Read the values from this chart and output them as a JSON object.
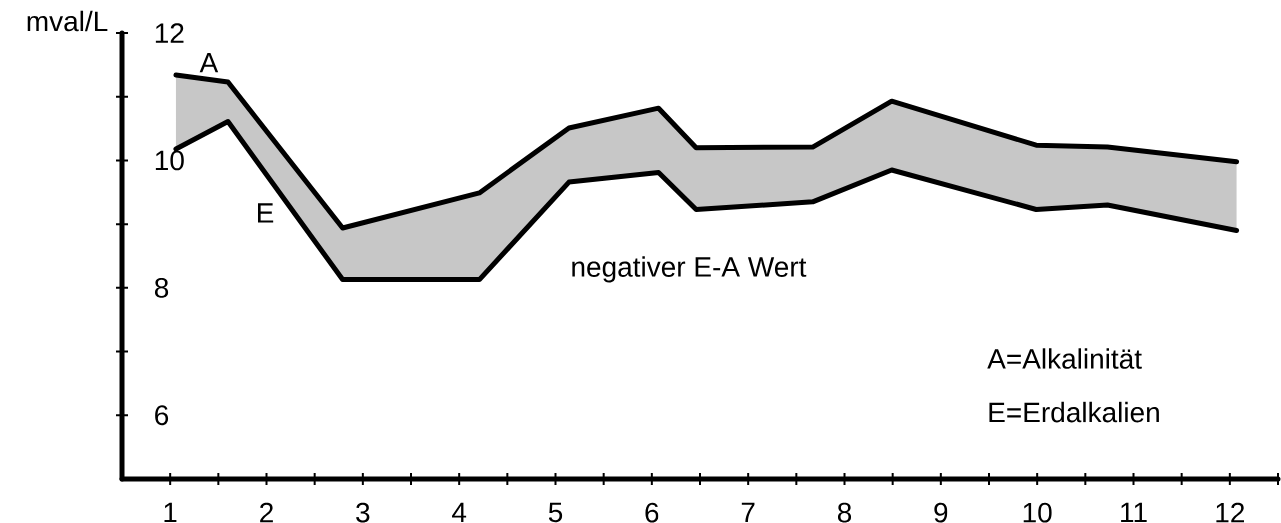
{
  "chart_data": {
    "type": "line",
    "ylabel": "mval/L",
    "annotations": [
      "negativer E-A Wert",
      "A=Alkalinität",
      "E=Erdalkalien"
    ],
    "x": [
      1.06,
      1.6,
      2.79,
      4.21,
      5.14,
      6.07,
      6.46,
      7.67,
      8.49,
      9.99,
      10.73,
      12.07
    ],
    "series": [
      {
        "name": "A",
        "color": "#000000",
        "values": [
          11.34,
          11.23,
          8.94,
          9.49,
          10.51,
          10.82,
          10.2,
          10.21,
          10.93,
          10.24,
          10.21,
          9.98
        ]
      },
      {
        "name": "E",
        "color": "#000000",
        "values": [
          10.18,
          10.61,
          8.13,
          8.13,
          9.66,
          9.81,
          9.23,
          9.35,
          9.85,
          9.23,
          9.3,
          8.9
        ],
        "lower": [
          10.18,
          10.61,
          8.13,
          8.13,
          9.66,
          9.81,
          9.23,
          9.35,
          9.85,
          9.23,
          9.3,
          8.9
        ],
        "upper": [
          11.34,
          11.23,
          8.94,
          9.49,
          10.51,
          10.82,
          10.2,
          10.21,
          10.93,
          10.24,
          10.21,
          9.98
        ]
      }
    ],
    "xlim": [
      0.5,
      12.5
    ],
    "ylim": [
      5,
      12
    ],
    "xticks": [
      1,
      {
        "value": 1.5,
        "label": null
      },
      2,
      {
        "value": 2.5,
        "label": null
      },
      3,
      {
        "value": 3.5,
        "label": null
      },
      4,
      {
        "value": 4.5,
        "label": null
      },
      5,
      {
        "value": 5.5,
        "label": null
      },
      6,
      {
        "value": 6.5,
        "label": null
      },
      7,
      {
        "value": 7.5,
        "label": null
      },
      8,
      {
        "value": 8.5,
        "label": null
      },
      9,
      {
        "value": 9.5,
        "label": null
      },
      10,
      {
        "value": 10.5,
        "label": null
      },
      11,
      {
        "value": 11.5,
        "label": null
      },
      12,
      {
        "value": 12.5,
        "label": null
      }
    ],
    "yticks": [
      6,
      {
        "value": 7,
        "label": null
      },
      8,
      {
        "value": 9,
        "label": null
      },
      10,
      {
        "value": 11,
        "label": null
      },
      12
    ],
    "grid": false,
    "legend": false,
    "marker": "none",
    "line_style": "solid"
  }
}
